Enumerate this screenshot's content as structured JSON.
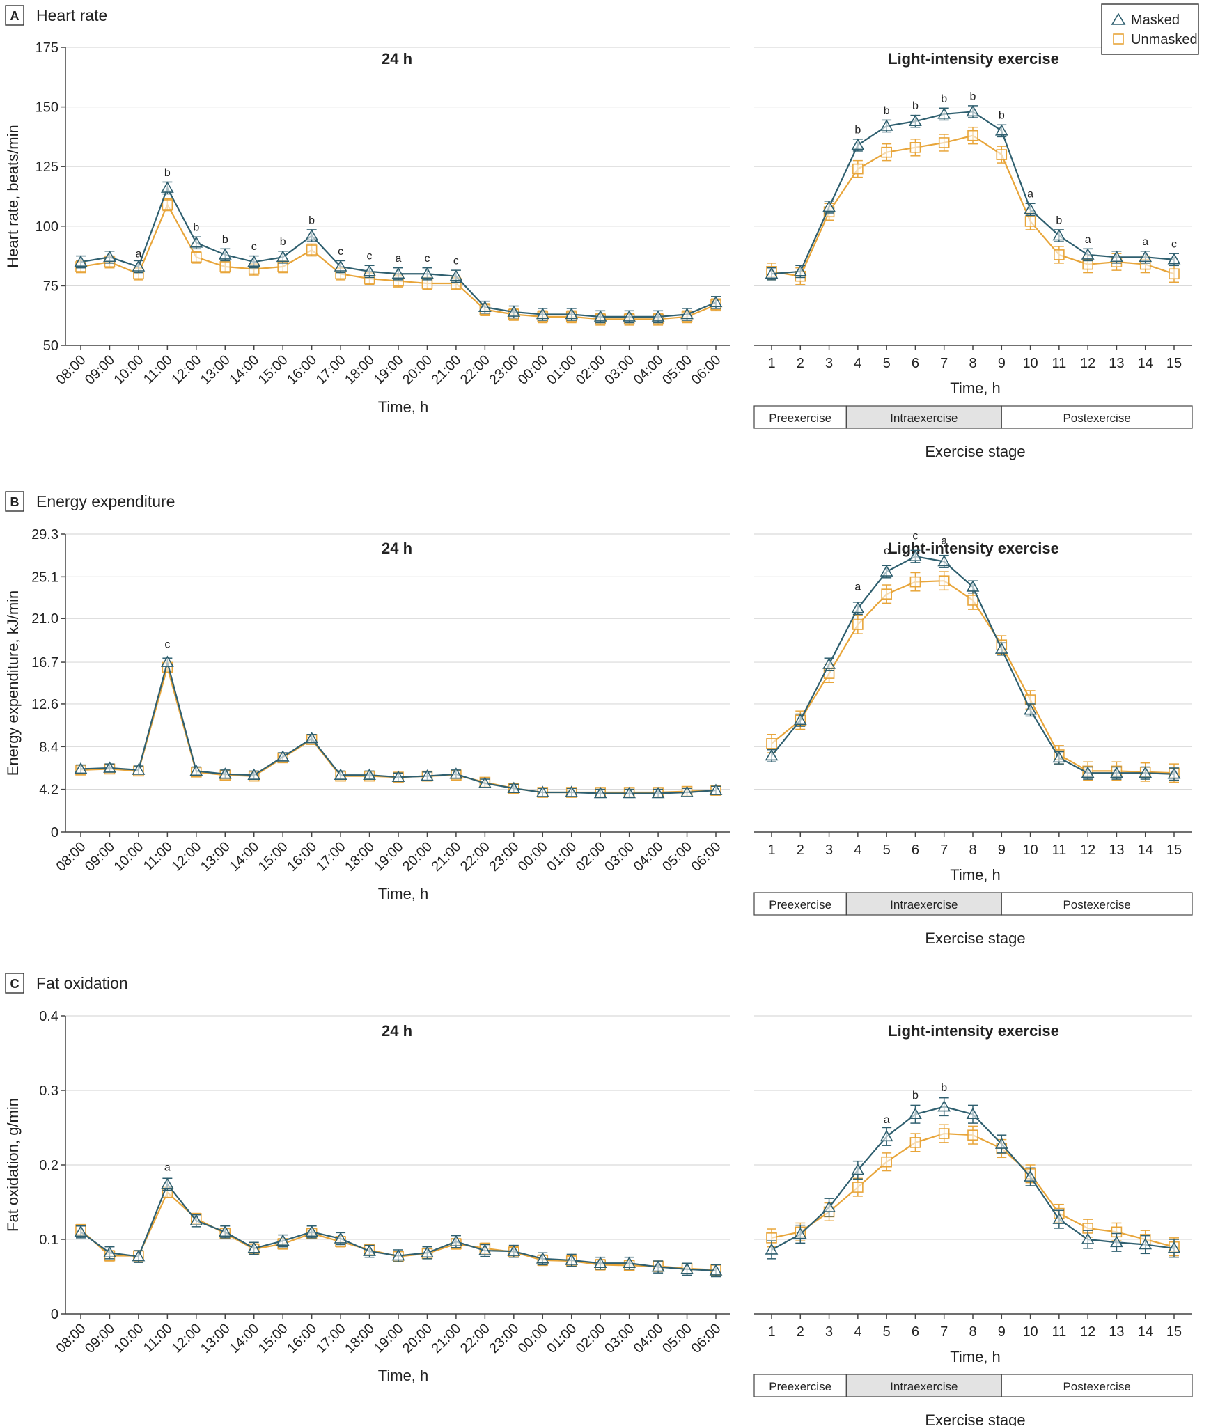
{
  "legend": {
    "items": [
      {
        "label": "Masked",
        "symbol": "triangle",
        "color": "#2f5f6f"
      },
      {
        "label": "Unmasked",
        "symbol": "square",
        "color": "#e8a53a"
      }
    ]
  },
  "colors": {
    "masked": "#2f5f6f",
    "unmasked": "#e8a53a",
    "intra_fill": "#e3e3e3"
  },
  "stages": {
    "title": "Exercise stage",
    "items": [
      {
        "label": "Preexercise",
        "from": 1,
        "to": 3.6
      },
      {
        "label": "Intraexercise",
        "from": 3.6,
        "to": 9.0
      },
      {
        "label": "Postexercise",
        "from": 9.0,
        "to": 15.6
      }
    ]
  },
  "chart_data": [
    {
      "panel": "A",
      "panel_title": "Heart rate",
      "side": "24h",
      "type": "line",
      "title": "24 h",
      "xlabel": "Time, h",
      "ylabel": "Heart rate, beats/min",
      "ylim": [
        50,
        175
      ],
      "yticks": [
        "50",
        "75",
        "100",
        "125",
        "150",
        "175"
      ],
      "grid": true,
      "categories": [
        "08:00",
        "09:00",
        "10:00",
        "11:00",
        "12:00",
        "13:00",
        "14:00",
        "15:00",
        "16:00",
        "17:00",
        "18:00",
        "19:00",
        "20:00",
        "21:00",
        "22:00",
        "23:00",
        "00:00",
        "01:00",
        "02:00",
        "03:00",
        "04:00",
        "05:00",
        "06:00"
      ],
      "series": [
        {
          "name": "Masked",
          "values": [
            85,
            87,
            83,
            116,
            93,
            88,
            85,
            87,
            96,
            83,
            81,
            80,
            80,
            79,
            66,
            64,
            63,
            63,
            62,
            62,
            62,
            63,
            68
          ],
          "err": 2.5
        },
        {
          "name": "Unmasked",
          "values": [
            83,
            85,
            80,
            109,
            87,
            83,
            82,
            83,
            90,
            80,
            78,
            77,
            76,
            76,
            65,
            63,
            62,
            62,
            61,
            61,
            61,
            62,
            67
          ],
          "err": 2.5
        }
      ],
      "annotations": [
        {
          "x": "10:00",
          "y": 87,
          "text": "a"
        },
        {
          "x": "11:00",
          "y": 121,
          "text": "b"
        },
        {
          "x": "12:00",
          "y": 98,
          "text": "b"
        },
        {
          "x": "13:00",
          "y": 93,
          "text": "b"
        },
        {
          "x": "14:00",
          "y": 90,
          "text": "c"
        },
        {
          "x": "15:00",
          "y": 92,
          "text": "b"
        },
        {
          "x": "16:00",
          "y": 101,
          "text": "b"
        },
        {
          "x": "17:00",
          "y": 88,
          "text": "c"
        },
        {
          "x": "18:00",
          "y": 86,
          "text": "c"
        },
        {
          "x": "19:00",
          "y": 85,
          "text": "a"
        },
        {
          "x": "20:00",
          "y": 85,
          "text": "c"
        },
        {
          "x": "21:00",
          "y": 84,
          "text": "c"
        }
      ]
    },
    {
      "panel": "A",
      "side": "exercise",
      "type": "line",
      "title": "Light-intensity exercise",
      "xlabel": "Time, h",
      "ylim": [
        50,
        175
      ],
      "grid": true,
      "categories": [
        "1",
        "2",
        "3",
        "4",
        "5",
        "6",
        "7",
        "8",
        "9",
        "10",
        "11",
        "12",
        "13",
        "14",
        "15"
      ],
      "series": [
        {
          "name": "Masked",
          "values": [
            80,
            81,
            108,
            134,
            142,
            144,
            147,
            148,
            140,
            107,
            96,
            88,
            87,
            87,
            86
          ],
          "err": 2.5
        },
        {
          "name": "Unmasked",
          "values": [
            81,
            79,
            106,
            124,
            131,
            133,
            135,
            138,
            130,
            102,
            88,
            84,
            85,
            84,
            80
          ],
          "err": 3.5
        }
      ],
      "annotations": [
        {
          "x": "4",
          "y": 139,
          "text": "b"
        },
        {
          "x": "5",
          "y": 147,
          "text": "b"
        },
        {
          "x": "6",
          "y": 149,
          "text": "b"
        },
        {
          "x": "7",
          "y": 152,
          "text": "b"
        },
        {
          "x": "8",
          "y": 153,
          "text": "b"
        },
        {
          "x": "9",
          "y": 145,
          "text": "b"
        },
        {
          "x": "10",
          "y": 112,
          "text": "a"
        },
        {
          "x": "11",
          "y": 101,
          "text": "b"
        },
        {
          "x": "12",
          "y": 93,
          "text": "a"
        },
        {
          "x": "14",
          "y": 92,
          "text": "a"
        },
        {
          "x": "15",
          "y": 91,
          "text": "c"
        }
      ]
    },
    {
      "panel": "B",
      "panel_title": "Energy expenditure",
      "side": "24h",
      "type": "line",
      "title": "24 h",
      "xlabel": "Time, h",
      "ylabel": "Energy expenditure, kJ/min",
      "ylim": [
        0,
        29.3
      ],
      "yticks": [
        "0",
        "4.2",
        "8.4",
        "12.6",
        "16.7",
        "21.0",
        "25.1",
        "29.3"
      ],
      "grid": true,
      "categories": [
        "08:00",
        "09:00",
        "10:00",
        "11:00",
        "12:00",
        "13:00",
        "14:00",
        "15:00",
        "16:00",
        "17:00",
        "18:00",
        "19:00",
        "20:00",
        "21:00",
        "22:00",
        "23:00",
        "00:00",
        "01:00",
        "02:00",
        "03:00",
        "04:00",
        "05:00",
        "06:00"
      ],
      "series": [
        {
          "name": "Masked",
          "values": [
            6.2,
            6.3,
            6.1,
            16.7,
            6.0,
            5.7,
            5.6,
            7.4,
            9.2,
            5.6,
            5.6,
            5.4,
            5.5,
            5.7,
            4.8,
            4.3,
            3.9,
            3.9,
            3.8,
            3.8,
            3.8,
            3.9,
            4.1
          ],
          "err": 0.4
        },
        {
          "name": "Unmasked",
          "values": [
            6.1,
            6.2,
            6.0,
            16.2,
            5.9,
            5.6,
            5.5,
            7.3,
            9.1,
            5.5,
            5.5,
            5.4,
            5.5,
            5.6,
            4.9,
            4.3,
            3.9,
            3.9,
            3.9,
            3.9,
            3.9,
            4.0,
            4.1
          ],
          "err": 0.4
        }
      ],
      "annotations": [
        {
          "x": "11:00",
          "y": 18.1,
          "text": "c"
        }
      ]
    },
    {
      "panel": "B",
      "side": "exercise",
      "type": "line",
      "title": "Light-intensity exercise",
      "xlabel": "Time, h",
      "ylim": [
        0,
        29.3
      ],
      "grid": true,
      "categories": [
        "1",
        "2",
        "3",
        "4",
        "5",
        "6",
        "7",
        "8",
        "9",
        "10",
        "11",
        "12",
        "13",
        "14",
        "15"
      ],
      "series": [
        {
          "name": "Masked",
          "values": [
            7.5,
            11.0,
            16.5,
            22.0,
            25.6,
            27.1,
            26.6,
            24.1,
            18.0,
            12.0,
            7.3,
            5.8,
            5.8,
            5.8,
            5.7
          ],
          "err": 0.6
        },
        {
          "name": "Unmasked",
          "values": [
            8.7,
            11.0,
            15.6,
            20.4,
            23.4,
            24.6,
            24.7,
            22.8,
            18.4,
            13.0,
            7.6,
            6.0,
            6.0,
            5.9,
            5.8
          ],
          "err": 0.9
        }
      ],
      "annotations": [
        {
          "x": "4",
          "y": 23.8,
          "text": "a"
        },
        {
          "x": "5",
          "y": 27.3,
          "text": "c"
        },
        {
          "x": "6",
          "y": 28.8,
          "text": "c"
        },
        {
          "x": "7",
          "y": 28.3,
          "text": "a"
        }
      ]
    },
    {
      "panel": "C",
      "panel_title": "Fat oxidation",
      "side": "24h",
      "type": "line",
      "title": "24 h",
      "xlabel": "Time, h",
      "ylabel": "Fat oxidation, g/min",
      "ylim": [
        0,
        0.4
      ],
      "yticks": [
        "0",
        "0.1",
        "0.2",
        "0.3",
        "0.4"
      ],
      "grid": true,
      "categories": [
        "08:00",
        "09:00",
        "10:00",
        "11:00",
        "12:00",
        "13:00",
        "14:00",
        "15:00",
        "16:00",
        "17:00",
        "18:00",
        "19:00",
        "20:00",
        "21:00",
        "22:00",
        "23:00",
        "00:00",
        "01:00",
        "02:00",
        "03:00",
        "04:00",
        "05:00",
        "06:00"
      ],
      "series": [
        {
          "name": "Masked",
          "values": [
            0.11,
            0.082,
            0.077,
            0.174,
            0.125,
            0.11,
            0.088,
            0.098,
            0.11,
            0.101,
            0.084,
            0.078,
            0.082,
            0.097,
            0.085,
            0.084,
            0.074,
            0.072,
            0.068,
            0.068,
            0.063,
            0.06,
            0.058
          ],
          "err": 0.008
        },
        {
          "name": "Unmasked",
          "values": [
            0.113,
            0.078,
            0.078,
            0.163,
            0.128,
            0.108,
            0.087,
            0.094,
            0.108,
            0.097,
            0.086,
            0.077,
            0.081,
            0.094,
            0.088,
            0.083,
            0.072,
            0.071,
            0.066,
            0.065,
            0.064,
            0.061,
            0.059
          ],
          "err": 0.007
        }
      ],
      "annotations": [
        {
          "x": "11:00",
          "y": 0.192,
          "text": "a"
        }
      ]
    },
    {
      "panel": "C",
      "side": "exercise",
      "type": "line",
      "title": "Light-intensity exercise",
      "xlabel": "Time, h",
      "ylim": [
        0,
        0.4
      ],
      "grid": true,
      "categories": [
        "1",
        "2",
        "3",
        "4",
        "5",
        "6",
        "7",
        "8",
        "9",
        "10",
        "11",
        "12",
        "13",
        "14",
        "15"
      ],
      "series": [
        {
          "name": "Masked",
          "values": [
            0.086,
            0.107,
            0.143,
            0.193,
            0.238,
            0.268,
            0.278,
            0.268,
            0.228,
            0.184,
            0.127,
            0.1,
            0.096,
            0.093,
            0.088
          ],
          "err": 0.012
        },
        {
          "name": "Unmasked",
          "values": [
            0.102,
            0.11,
            0.137,
            0.17,
            0.204,
            0.23,
            0.242,
            0.24,
            0.222,
            0.188,
            0.135,
            0.115,
            0.11,
            0.1,
            0.09
          ],
          "err": 0.012
        }
      ],
      "annotations": [
        {
          "x": "5",
          "y": 0.256,
          "text": "a"
        },
        {
          "x": "6",
          "y": 0.289,
          "text": "b"
        },
        {
          "x": "7",
          "y": 0.299,
          "text": "b"
        }
      ]
    }
  ]
}
